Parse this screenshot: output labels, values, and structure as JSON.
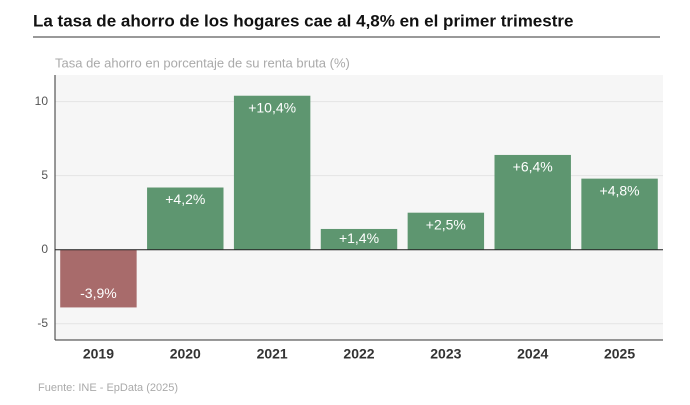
{
  "chart_data": {
    "type": "bar",
    "title": "La tasa de ahorro de los hogares cae al 4,8% en el primer trimestre",
    "subtitle": "Tasa de ahorro en porcentaje de su renta bruta (%)",
    "source": "Fuente: INE - EpData (2025)",
    "categories": [
      "2019",
      "2020",
      "2021",
      "2022",
      "2023",
      "2024",
      "2025"
    ],
    "values": [
      -3.9,
      4.2,
      10.4,
      1.4,
      2.5,
      6.4,
      4.8
    ],
    "value_labels": [
      "-3,9%",
      "+4,2%",
      "+10,4%",
      "+1,4%",
      "+2,5%",
      "+6,4%",
      "+4,8%"
    ],
    "colors": [
      "#a86b6b",
      "#5e9670",
      "#5e9670",
      "#5e9670",
      "#5e9670",
      "#5e9670",
      "#5e9670"
    ],
    "ylim": [
      -6.1,
      11.8
    ],
    "yticks": [
      -5,
      0,
      5,
      10
    ],
    "grid": true
  }
}
